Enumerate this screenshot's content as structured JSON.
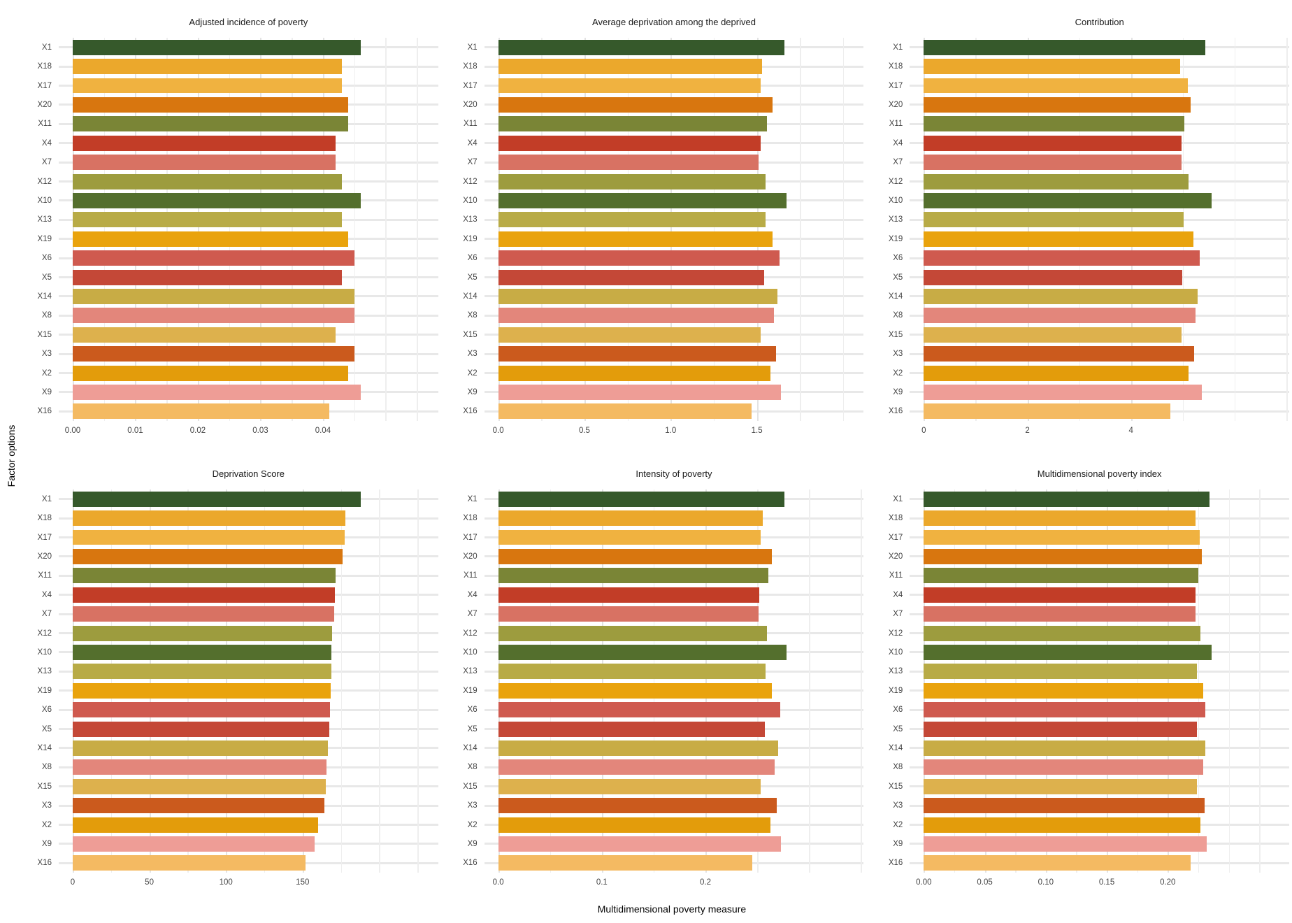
{
  "figure": {
    "y_axis_title": "Factor options",
    "x_axis_title": "Multidimensional poverty measure"
  },
  "chart_data": {
    "type": "bar",
    "orientation": "horizontal",
    "layout": "6 facets (2 rows x 3 columns), shared category axis, free x scales, grid on, no legend",
    "categories": [
      "X1",
      "X18",
      "X17",
      "X20",
      "X11",
      "X4",
      "X7",
      "X12",
      "X10",
      "X13",
      "X19",
      "X6",
      "X5",
      "X14",
      "X8",
      "X15",
      "X3",
      "X2",
      "X9",
      "X16"
    ],
    "bar_colors": [
      "#36592b",
      "#eba82c",
      "#f0b240",
      "#d8760f",
      "#7a8536",
      "#c23d27",
      "#d87263",
      "#9d9c3e",
      "#546f2d",
      "#b8ab46",
      "#e9a30d",
      "#cf5a4f",
      "#c44837",
      "#c8ac45",
      "#e3867b",
      "#ddb14d",
      "#cb5a1d",
      "#e39c0b",
      "#ee9d96",
      "#f4ba62"
    ],
    "ylabel": "Factor options",
    "xlabel": "Multidimensional poverty measure",
    "panels": [
      {
        "title": "Adjusted incidence of poverty",
        "values": [
          0.046,
          0.043,
          0.043,
          0.044,
          0.044,
          0.042,
          0.042,
          0.043,
          0.046,
          0.043,
          0.044,
          0.045,
          0.043,
          0.045,
          0.045,
          0.042,
          0.045,
          0.044,
          0.046,
          0.041
        ],
        "xlim": [
          0,
          0.0583
        ],
        "ticks": [
          0,
          0.01,
          0.02,
          0.03,
          0.04
        ],
        "tick_labels": [
          "0.00",
          "0.01",
          "0.02",
          "0.03",
          "0.04"
        ],
        "grid_step": 0.005
      },
      {
        "title": "Average deprivation among the deprived",
        "values": [
          1.66,
          1.53,
          1.52,
          1.59,
          1.56,
          1.52,
          1.51,
          1.55,
          1.67,
          1.55,
          1.59,
          1.63,
          1.54,
          1.62,
          1.6,
          1.52,
          1.61,
          1.58,
          1.64,
          1.47
        ],
        "xlim": [
          0,
          2.115
        ],
        "ticks": [
          0,
          0.5,
          1.0,
          1.5
        ],
        "tick_labels": [
          "0.0",
          "0.5",
          "1.0",
          "1.5"
        ],
        "grid_step": 0.25
      },
      {
        "title": "Contribution",
        "values": [
          5.43,
          4.95,
          5.09,
          5.15,
          5.03,
          4.97,
          4.97,
          5.11,
          5.56,
          5.01,
          5.21,
          5.32,
          4.99,
          5.29,
          5.24,
          4.97,
          5.22,
          5.11,
          5.37,
          4.76
        ],
        "xlim": [
          0,
          7.04
        ],
        "ticks": [
          0,
          2,
          4
        ],
        "tick_labels": [
          "0",
          "2",
          "4"
        ],
        "grid_step": 1
      },
      {
        "title": "Deprivation Score",
        "values": [
          188,
          178,
          177.5,
          176,
          171.5,
          171.2,
          170.6,
          169.4,
          168.9,
          168.6,
          168.3,
          168.0,
          167.3,
          166.4,
          165.8,
          165.2,
          164.4,
          160,
          158,
          152
        ],
        "xlim": [
          0,
          238
        ],
        "ticks": [
          0,
          50,
          100,
          150
        ],
        "tick_labels": [
          "0",
          "50",
          "100",
          "150"
        ],
        "grid_step": 25
      },
      {
        "title": "Intensity of poverty",
        "values": [
          0.276,
          0.255,
          0.253,
          0.264,
          0.261,
          0.252,
          0.251,
          0.259,
          0.278,
          0.258,
          0.264,
          0.272,
          0.257,
          0.27,
          0.267,
          0.253,
          0.269,
          0.263,
          0.273,
          0.245
        ],
        "xlim": [
          0,
          0.352
        ],
        "ticks": [
          0,
          0.1,
          0.2
        ],
        "tick_labels": [
          "0.0",
          "0.1",
          "0.2"
        ],
        "grid_step": 0.05
      },
      {
        "title": "Multidimensional poverty index",
        "values": [
          0.234,
          0.223,
          0.226,
          0.228,
          0.225,
          0.223,
          0.223,
          0.227,
          0.236,
          0.224,
          0.229,
          0.231,
          0.224,
          0.231,
          0.229,
          0.224,
          0.23,
          0.227,
          0.232,
          0.219
        ],
        "xlim": [
          0,
          0.299
        ],
        "ticks": [
          0,
          0.05,
          0.1,
          0.15,
          0.2
        ],
        "tick_labels": [
          "0.00",
          "0.05",
          "0.10",
          "0.15",
          "0.20"
        ],
        "grid_step": 0.025
      }
    ]
  }
}
